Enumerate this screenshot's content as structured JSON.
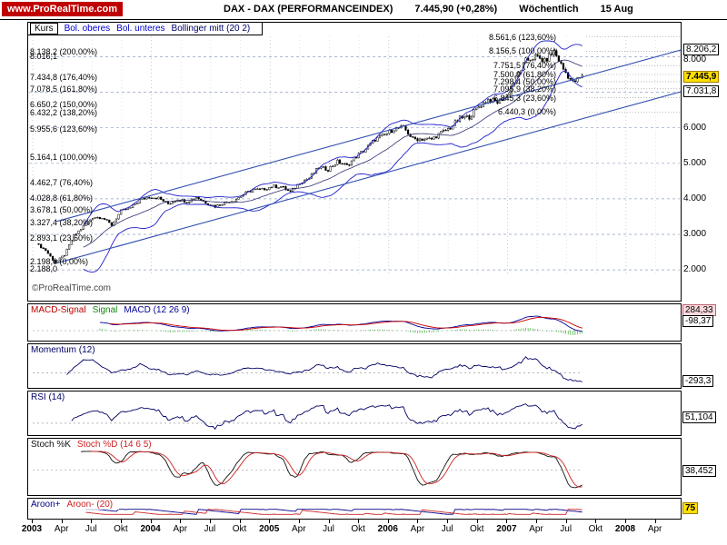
{
  "header": {
    "site": "www.ProRealTime.com",
    "title": "DAX - DAX (PERFORMANCEINDEX)",
    "last": "7.445,90 (+0,28%)",
    "period": "Wöchentlich",
    "date": "15 Aug"
  },
  "main": {
    "legend": {
      "kurs": "Kurs",
      "bol_upper": "Bol. oberes",
      "bol_lower": "Bol. unteres",
      "bol_mid": "Bollinger mitt (20 2)"
    },
    "copyright": "©ProRealTime.com"
  },
  "indicator_panels": [
    {
      "id": "macd",
      "legend": [
        {
          "text": "MACD-Signal",
          "color": "#bb0000"
        },
        {
          "text": "Signal",
          "color": "#118811"
        },
        {
          "text": "MACD (12 26 9)",
          "color": "#000099"
        }
      ],
      "values": [
        {
          "text": "284,33",
          "style": "pink",
          "pos": 0.14
        },
        {
          "text": "-98,37",
          "style": "box",
          "pos": 0.44
        }
      ]
    },
    {
      "id": "momentum",
      "legend": [
        {
          "text": "Momentum (12)",
          "color": "#000066"
        }
      ],
      "values": [
        {
          "text": "-293,3",
          "style": "box",
          "pos": 0.8
        }
      ]
    },
    {
      "id": "rsi",
      "legend": [
        {
          "text": "RSI (14)",
          "color": "#000066"
        }
      ],
      "values": [
        {
          "text": "51,104",
          "style": "box",
          "pos": 0.55
        }
      ]
    },
    {
      "id": "stoch",
      "legend": [
        {
          "text": "Stoch %K",
          "color": "#111111"
        },
        {
          "text": "Stoch %D (14 6 5)",
          "color": "#cc2222"
        }
      ],
      "values": [
        {
          "text": "38,452",
          "style": "box",
          "pos": 0.55
        }
      ]
    },
    {
      "id": "aroon",
      "legend": [
        {
          "text": "Aroon+",
          "color": "#000088"
        },
        {
          "text": "Aroon- (20)",
          "color": "#cc2222"
        }
      ],
      "values": [
        {
          "text": "75",
          "style": "yellow",
          "pos": 0.4
        }
      ]
    }
  ],
  "x_axis": {
    "labels": [
      "2003",
      "Apr",
      "Jul",
      "Okt",
      "2004",
      "Apr",
      "Jul",
      "Okt",
      "2005",
      "Apr",
      "Jul",
      "Okt",
      "2006",
      "Apr",
      "Jul",
      "Okt",
      "2007",
      "Apr",
      "Jul",
      "Okt",
      "2008",
      "Apr"
    ]
  },
  "chart_data": {
    "type": "candlestick",
    "title": "DAX (Performance Index) weekly, 2003 – Aug 2007, Bollinger(20,2), Fibonacci levels, ascending trend channel",
    "instrument": "DAX",
    "timeframe": "weekly",
    "last_price": "7.445,90",
    "change_pct": "+0,28%",
    "x_domain_years": [
      2003.0,
      2008.46
    ],
    "candle_t0": 2003.05,
    "candle_step_years": 0.01983,
    "ylim": [
      1900,
      8600
    ],
    "y_gridlines": [
      2000,
      3000,
      4000,
      5000,
      6000,
      7000,
      8000
    ],
    "anchor_closes_monthly": [
      2740,
      2550,
      2202,
      2424,
      2960,
      3220,
      3480,
      3480,
      3260,
      3655,
      3745,
      3965,
      4060,
      4020,
      3860,
      3985,
      3920,
      4050,
      3895,
      3785,
      3895,
      3960,
      4125,
      4256,
      4255,
      4350,
      4348,
      4185,
      4460,
      4585,
      4885,
      4830,
      5045,
      4930,
      5195,
      5408,
      5675,
      5795,
      5970,
      6010,
      5690,
      5683,
      5682,
      5860,
      6005,
      6270,
      6310,
      6597,
      6790,
      6715,
      6917,
      7408,
      7885,
      8007,
      7870,
      8151,
      7650,
      7270,
      7446
    ],
    "weekly_subdiv": 4,
    "noise_amp": 0.011,
    "bollinger": {
      "period": 20,
      "mult": 2
    },
    "channel_lines": [
      {
        "t1": 2003.2,
        "v1": 2190,
        "t2": 2008.48,
        "v2": 7031.8
      },
      {
        "t1": 2003.2,
        "v1": 3364,
        "t2": 2008.48,
        "v2": 8206.2
      }
    ],
    "fib_left": [
      {
        "text": "8.138,2 (200,00%)",
        "v": 8138.2
      },
      {
        "text": "8.016,1",
        "v": 8016.1
      },
      {
        "text": "7.434,8 (176,40%)",
        "v": 7434.8
      },
      {
        "text": "7.078,5 (161,80%)",
        "v": 7078.5
      },
      {
        "text": "6.650,2 (150,00%)",
        "v": 6650.2
      },
      {
        "text": "6.432,2 (138,20%)",
        "v": 6432.2
      },
      {
        "text": "5.955,6 (123,60%)",
        "v": 5955.6
      },
      {
        "text": "5.164,1 (100,00%)",
        "v": 5164.1
      },
      {
        "text": "4.462,7 (76,40%)",
        "v": 4462.7
      },
      {
        "text": "4.028,8 (61,80%)",
        "v": 4028.8
      },
      {
        "text": "3.678,1 (50,00%)",
        "v": 3678.1
      },
      {
        "text": "3.327,4 (38,20%)",
        "v": 3327.4
      },
      {
        "text": "2.893,1 (23,60%)",
        "v": 2893.1
      },
      {
        "text": "2.198,0 (0,00%)",
        "v": 2198.0,
        "dy": -1
      },
      {
        "text": "2.188,0",
        "v": 2188.0,
        "dy": 6
      }
    ],
    "fib_right": [
      {
        "text": "8.561,6 (123,60%)",
        "v": 8561.6
      },
      {
        "text": "8.156,5 (100,00%)",
        "v": 8156.5
      },
      {
        "text": "7.751,5 (76,40%)",
        "v": 7751.5
      },
      {
        "text": "7.500,9 (61,80%)",
        "v": 7500.9
      },
      {
        "text": "7.298,4 (50,00%)",
        "v": 7298.4
      },
      {
        "text": "7.095,9 (38,20%)",
        "v": 7095.9
      },
      {
        "text": "6.845,3 (23,60%)",
        "v": 6845.3
      },
      {
        "text": "6.440,3 (0,00%)",
        "v": 6440.3
      }
    ],
    "y_axis_labels": [
      {
        "text": "8.206,2",
        "v": 8206.2,
        "style": "box"
      },
      {
        "text": "8.000",
        "v": 8000,
        "style": "plain",
        "dy": 4
      },
      {
        "text": "7.445,9",
        "v": 7445.9,
        "style": "yellow"
      },
      {
        "text": "7.031,8",
        "v": 7031.8,
        "style": "box"
      },
      {
        "text": "6.000",
        "v": 6000,
        "style": "plain"
      },
      {
        "text": "5.000",
        "v": 5000,
        "style": "plain"
      },
      {
        "text": "4.000",
        "v": 4000,
        "style": "plain"
      },
      {
        "text": "3.000",
        "v": 3000,
        "style": "plain"
      },
      {
        "text": "2.000",
        "v": 2000,
        "style": "plain"
      }
    ],
    "indicators": [
      {
        "id": "macd",
        "label": "MACD (12 26 9)",
        "last_values": [
          "284,33",
          "-98,37"
        ]
      },
      {
        "id": "momentum",
        "label": "Momentum (12)",
        "last_value": "-293,3"
      },
      {
        "id": "rsi",
        "label": "RSI (14)",
        "last_value": "51,104"
      },
      {
        "id": "stoch",
        "label": "Stoch %K / Stoch %D (14 6 5)",
        "last_value": "38,452"
      },
      {
        "id": "aroon",
        "label": "Aroon+ / Aroon- (20)",
        "last_value": "75"
      }
    ]
  }
}
